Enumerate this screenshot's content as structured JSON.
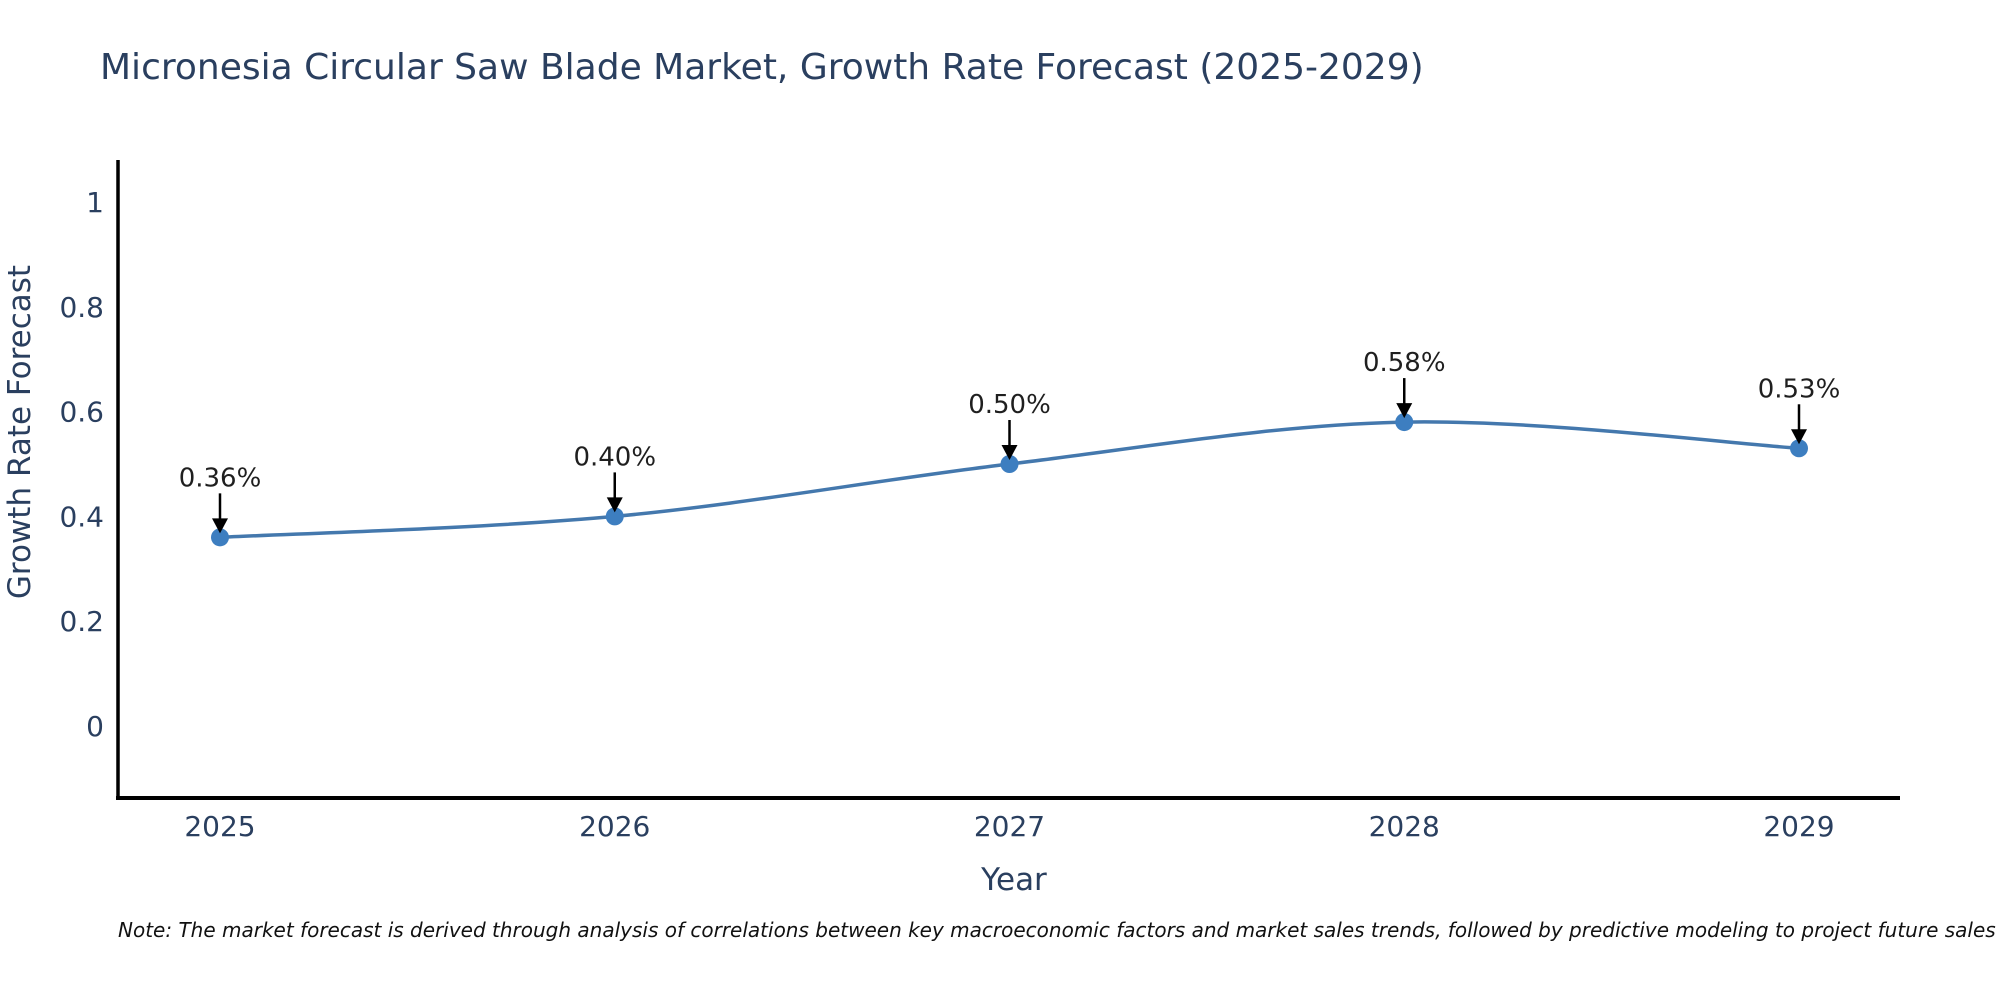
{
  "title": "Micronesia Circular Saw Blade Market, Growth Rate Forecast (2025-2029)",
  "note": "Note: The market forecast is derived through analysis of correlations between key macroeconomic factors and market sales trends, followed by predictive modeling to project future sales",
  "chart_data": {
    "type": "line",
    "title": "Micronesia Circular Saw Blade Market, Growth Rate Forecast (2025-2029)",
    "categories": [
      "2025",
      "2026",
      "2027",
      "2028",
      "2029"
    ],
    "series": [
      {
        "name": "Growth Rate Forecast",
        "values": [
          0.36,
          0.4,
          0.5,
          0.58,
          0.53
        ]
      }
    ],
    "point_labels": [
      "0.36%",
      "0.40%",
      "0.50%",
      "0.58%",
      "0.53%"
    ],
    "xlabel": "Year",
    "ylabel": "Growth Rate Forecast",
    "ylim": [
      0,
      1
    ],
    "yticks": [
      0,
      0.2,
      0.4,
      0.6,
      0.8,
      1
    ],
    "ytick_labels": [
      "0",
      "0.2",
      "0.4",
      "0.6",
      "0.8",
      "1"
    ],
    "grid": false,
    "legend": false,
    "line_shape": "spline",
    "annotations_style": "value label with down arrow to each point",
    "colors": {
      "line": "#4478ad",
      "marker": "#3d7ec0",
      "axis_line": "#000000",
      "axis_text": "#2a3f5f",
      "annotation_text": "#1f1f1f",
      "arrow": "#000000",
      "background": "#ffffff"
    }
  }
}
